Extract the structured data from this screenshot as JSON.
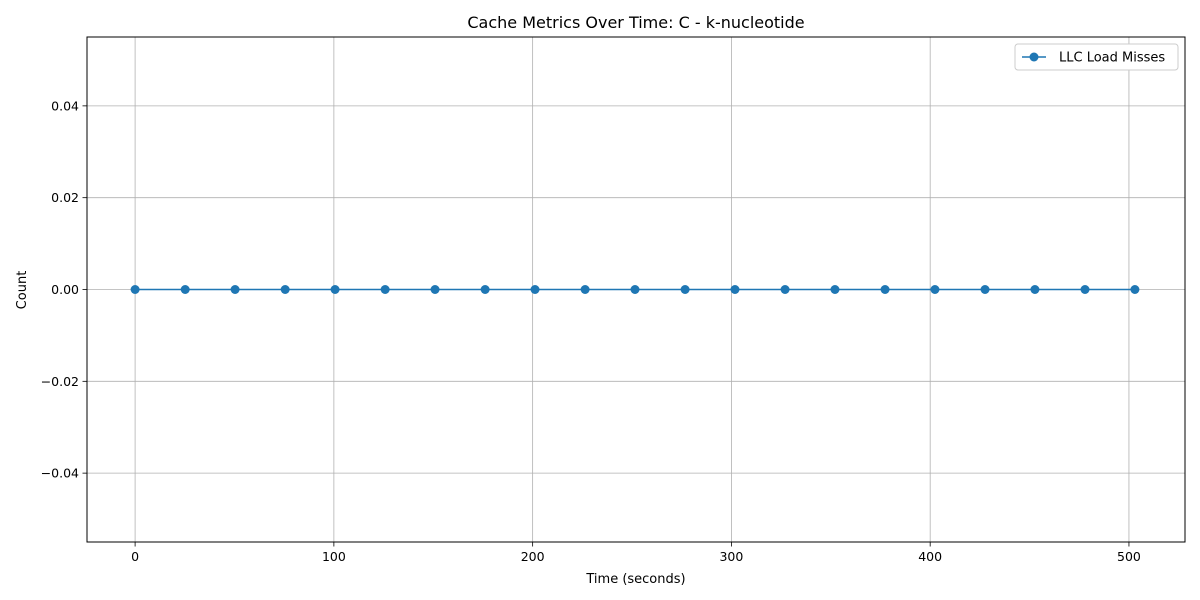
{
  "chart_data": {
    "type": "line",
    "title": "Cache Metrics Over Time: C - k-nucleotide",
    "xlabel": "Time (seconds)",
    "ylabel": "Count",
    "xlim": [
      -24.2,
      528.2
    ],
    "ylim": [
      -0.055,
      0.055
    ],
    "xticks": [
      0,
      100,
      200,
      300,
      400,
      500
    ],
    "yticks": [
      -0.04,
      -0.02,
      0.0,
      0.02,
      0.04
    ],
    "xtick_labels": [
      "0",
      "100",
      "200",
      "300",
      "400",
      "500"
    ],
    "ytick_labels": [
      "−0.04",
      "−0.02",
      "0.00",
      "0.02",
      "0.04"
    ],
    "grid": true,
    "legend_position": "top-right",
    "series": [
      {
        "name": "LLC Load Misses",
        "color": "#1f77b4",
        "marker": "circle",
        "x": [
          0,
          25.2,
          50.3,
          75.5,
          100.6,
          125.8,
          150.9,
          176.1,
          201.2,
          226.4,
          251.5,
          276.7,
          301.8,
          327.0,
          352.1,
          377.3,
          402.4,
          427.6,
          452.7,
          477.9,
          503.0
        ],
        "y": [
          0,
          0,
          0,
          0,
          0,
          0,
          0,
          0,
          0,
          0,
          0,
          0,
          0,
          0,
          0,
          0,
          0,
          0,
          0,
          0,
          0
        ]
      }
    ]
  }
}
